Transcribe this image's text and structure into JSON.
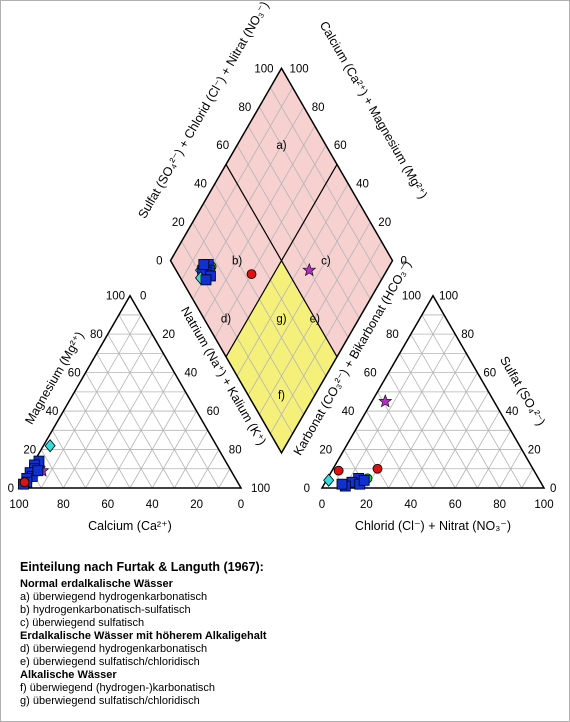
{
  "chart_data": {
    "type": "scatter",
    "title": "",
    "diamond_regions": [
      {
        "label": "a)",
        "u": 80,
        "v": 80
      },
      {
        "label": "b)",
        "u": 70,
        "v": 30
      },
      {
        "label": "c)",
        "u": 30,
        "v": 70
      },
      {
        "label": "d)",
        "u": 60,
        "v": 10
      },
      {
        "label": "e)",
        "u": 20,
        "v": 50
      },
      {
        "label": "f)",
        "u": 15,
        "v": 15
      },
      {
        "label": "g)",
        "u": 35,
        "v": 35
      }
    ],
    "axes": {
      "cation_bottom": {
        "label": "Calcium (Ca²⁺)",
        "ticks": [
          "100",
          "80",
          "60",
          "40",
          "20",
          "0"
        ]
      },
      "cation_left": {
        "label": "Magnesium (Mg²⁺)",
        "ticks": [
          "0",
          "20",
          "40",
          "60",
          "80",
          "100"
        ]
      },
      "cation_right": {
        "label": "Natrium (Na⁺) + Kalium (K⁺)",
        "ticks": [
          "0",
          "20",
          "40",
          "60",
          "80",
          "100"
        ]
      },
      "anion_bottom": {
        "label": "Chlorid (Cl⁻) + Nitrat (NO₃⁻)",
        "ticks": [
          "0",
          "20",
          "40",
          "60",
          "80",
          "100"
        ]
      },
      "anion_left": {
        "label": "Karbonat (CO₃²⁻) + Bikarbonat (HCO₃⁻)",
        "ticks": [
          "100",
          "80",
          "60",
          "40",
          "20",
          "0"
        ]
      },
      "anion_right": {
        "label": "Sulfat (SO₄²⁻)",
        "ticks": [
          "100",
          "80",
          "60",
          "40",
          "20",
          "0"
        ]
      },
      "diamond_upper_left": {
        "label": "Sulfat (SO₄²⁻) + Chlorid (Cl⁻) + Nitrat (NO₃⁻)",
        "ticks": [
          "0",
          "20",
          "40",
          "60",
          "80",
          "100"
        ]
      },
      "diamond_upper_right": {
        "label": "Calcium (Ca²⁺) + Magnesium (Mg²⁺)",
        "ticks": [
          "100",
          "80",
          "60",
          "40",
          "20",
          "0"
        ]
      }
    },
    "cation_points": [
      {
        "marker": "diamond",
        "color": "#33dddd",
        "mg": 22,
        "nak": 3
      },
      {
        "marker": "circle",
        "color": "#22cc22",
        "mg": 12,
        "nak": 2
      },
      {
        "marker": "diamond",
        "color": "#33dddd",
        "mg": 11,
        "nak": 4
      },
      {
        "marker": "star",
        "color": "#b030c0",
        "mg": 9,
        "nak": 6
      },
      {
        "marker": "square",
        "color": "#1030d0",
        "mg": 14,
        "nak": 2
      },
      {
        "marker": "square",
        "color": "#1030d0",
        "mg": 12,
        "nak": 1
      },
      {
        "marker": "square",
        "color": "#1030d0",
        "mg": 10,
        "nak": 2
      },
      {
        "marker": "square",
        "color": "#1030d0",
        "mg": 8,
        "nak": 1
      },
      {
        "marker": "square",
        "color": "#1030d0",
        "mg": 6,
        "nak": 3
      },
      {
        "marker": "square",
        "color": "#1030d0",
        "mg": 5,
        "nak": 1
      },
      {
        "marker": "square",
        "color": "#1030d0",
        "mg": 3,
        "nak": 2
      },
      {
        "marker": "square",
        "color": "#1030d0",
        "mg": 2,
        "nak": 1
      },
      {
        "marker": "circle",
        "color": "#dd1111",
        "mg": 3,
        "nak": 1
      },
      {
        "marker": "square",
        "color": "#1030d0",
        "mg": 9,
        "nak": 4
      }
    ],
    "anion_points": [
      {
        "marker": "star",
        "color": "#b030c0",
        "cl": 6,
        "so4": 45
      },
      {
        "marker": "circle",
        "color": "#dd1111",
        "cl": 20,
        "so4": 10
      },
      {
        "marker": "circle",
        "color": "#dd1111",
        "cl": 3,
        "so4": 9
      },
      {
        "marker": "diamond",
        "color": "#33dddd",
        "cl": 1,
        "so4": 4
      },
      {
        "marker": "circle",
        "color": "#22cc22",
        "cl": 18,
        "so4": 5
      },
      {
        "marker": "square",
        "color": "#1030d0",
        "cl": 14,
        "so4": 5
      },
      {
        "marker": "square",
        "color": "#1030d0",
        "cl": 12,
        "so4": 3
      },
      {
        "marker": "square",
        "color": "#1030d0",
        "cl": 16,
        "so4": 2
      },
      {
        "marker": "square",
        "color": "#1030d0",
        "cl": 10,
        "so4": 1
      },
      {
        "marker": "square",
        "color": "#1030d0",
        "cl": 8,
        "so4": 2
      },
      {
        "marker": "square",
        "color": "#1030d0",
        "cl": 17,
        "so4": 4
      }
    ],
    "diamond_points": [
      {
        "marker": "star",
        "color": "#b030c0",
        "u": 35,
        "v": 60
      },
      {
        "marker": "circle",
        "color": "#dd1111",
        "u": 60,
        "v": 33
      },
      {
        "marker": "diamond",
        "color": "#33dddd",
        "u": 84,
        "v": 11
      },
      {
        "marker": "circle",
        "color": "#22cc22",
        "u": 80,
        "v": 17
      },
      {
        "marker": "square",
        "color": "#1030d0",
        "u": 82,
        "v": 16
      },
      {
        "marker": "square",
        "color": "#1030d0",
        "u": 80,
        "v": 15
      },
      {
        "marker": "square",
        "color": "#1030d0",
        "u": 81,
        "v": 13
      },
      {
        "marker": "square",
        "color": "#1030d0",
        "u": 83,
        "v": 12
      },
      {
        "marker": "square",
        "color": "#1030d0",
        "u": 78,
        "v": 14
      },
      {
        "marker": "square",
        "color": "#1030d0",
        "u": 84,
        "v": 14
      },
      {
        "marker": "diamond",
        "color": "#33dddd",
        "u": 82,
        "v": 9
      },
      {
        "marker": "square",
        "color": "#1030d0",
        "u": 79,
        "v": 11
      }
    ],
    "colors": {
      "pink": "#f7d0d0",
      "yellow": "#f5f07a",
      "grid": "#b5b5b5",
      "outline": "#000000"
    }
  },
  "legend": {
    "title": "Einteilung nach Furtak & Languth (1967):",
    "groups": [
      {
        "title": "Normal erdalkalische Wässer",
        "items": [
          "a)  überwiegend hydrogenkarbonatisch",
          "b)  hydrogenkarbonatisch-sulfatisch",
          "c)  überwiegend sulfatisch"
        ]
      },
      {
        "title": "Erdalkalische Wässer mit höherem Alkaligehalt",
        "items": [
          "d)  überwiegend hydrogenkarbonatisch",
          "e)  überwiegend sulfatisch/chloridisch"
        ]
      },
      {
        "title": "Alkalische Wässer",
        "items": [
          "f)  überwiegend (hydrogen-)karbonatisch",
          "g) überwiegend sulfatisch/chloridisch"
        ]
      }
    ]
  }
}
